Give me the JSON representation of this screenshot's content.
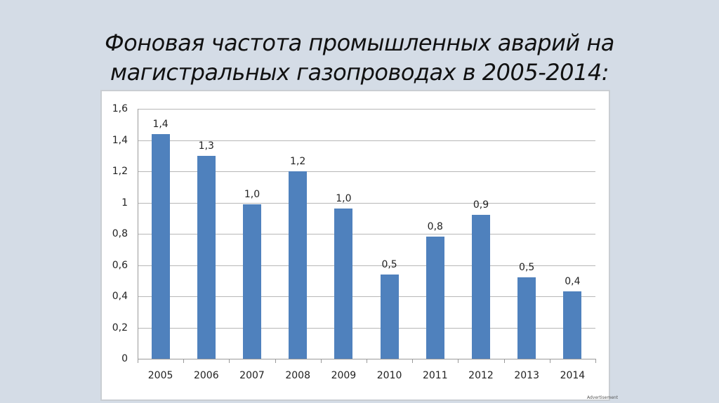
{
  "slide": {
    "title_line1": "Фоновая частота промышленных аварий на",
    "title_line2": "магистральных газопроводах в 2005-2014:",
    "watermark": "Advertisement"
  },
  "chart_data": {
    "type": "bar",
    "title": "Фоновая частота промышленных аварий на магистральных газопроводах в 2005-2014:",
    "xlabel": "",
    "ylabel": "",
    "categories": [
      "2005",
      "2006",
      "2007",
      "2008",
      "2009",
      "2010",
      "2011",
      "2012",
      "2013",
      "2014"
    ],
    "values": [
      1.44,
      1.3,
      0.99,
      1.2,
      0.96,
      0.54,
      0.78,
      0.92,
      0.52,
      0.43
    ],
    "data_labels": [
      "1,4",
      "1,3",
      "1,0",
      "1,2",
      "1,0",
      "0,5",
      "0,8",
      "0,9",
      "0,5",
      "0,4"
    ],
    "ylim": [
      0,
      1.6
    ],
    "yticks": [
      "0",
      "0,2",
      "0,4",
      "0,6",
      "0,8",
      "1",
      "1,2",
      "1,4",
      "1,6"
    ],
    "grid": true,
    "legend": null,
    "bar_color": "#4f81bd"
  }
}
